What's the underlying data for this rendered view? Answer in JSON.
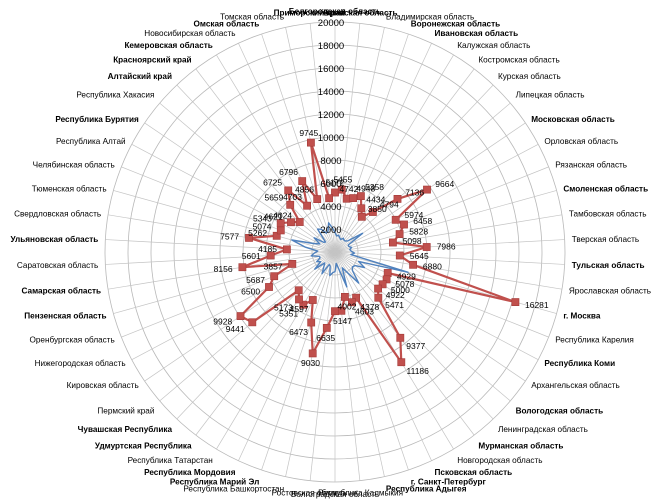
{
  "chart_data": {
    "type": "radar",
    "grid": true,
    "legend": "none",
    "rmax": 20000,
    "ticks": [
      2000,
      4000,
      6000,
      8000,
      10000,
      12000,
      14000,
      16000,
      18000,
      20000
    ],
    "tick_labels_display": [
      "2000",
      "4000",
      "6000",
      "8000",
      "10000",
      "12000",
      "14000",
      "16000",
      "18000",
      "20000"
    ],
    "categories": [
      {
        "label": "Белгородская область",
        "bold": true
      },
      {
        "label": "Брянская область",
        "bold": true
      },
      {
        "label": "Владимирская область",
        "bold": false
      },
      {
        "label": "Воронежская область",
        "bold": true
      },
      {
        "label": "Ивановская область",
        "bold": true
      },
      {
        "label": "Калужская область",
        "bold": false
      },
      {
        "label": "Костромская область",
        "bold": false
      },
      {
        "label": "Курская область",
        "bold": false
      },
      {
        "label": "Липецкая область",
        "bold": false
      },
      {
        "label": "Московская область",
        "bold": true
      },
      {
        "label": "Орловская область",
        "bold": false
      },
      {
        "label": "Рязанская область",
        "bold": false
      },
      {
        "label": "Смоленская область",
        "bold": true
      },
      {
        "label": "Тамбовская область",
        "bold": false
      },
      {
        "label": "Тверская область",
        "bold": false
      },
      {
        "label": "Тульская область",
        "bold": true
      },
      {
        "label": "Ярославская область",
        "bold": false
      },
      {
        "label": "г. Москва",
        "bold": true
      },
      {
        "label": "Республика Карелия",
        "bold": false
      },
      {
        "label": "Республика Коми",
        "bold": true
      },
      {
        "label": "Архангельская область",
        "bold": false
      },
      {
        "label": "Вологодская область",
        "bold": true
      },
      {
        "label": "Ленинградская область",
        "bold": false
      },
      {
        "label": "Мурманская область",
        "bold": true
      },
      {
        "label": "Новгородская область",
        "bold": false
      },
      {
        "label": "Псковская область",
        "bold": true
      },
      {
        "label": "г. Санкт-Петербург",
        "bold": true
      },
      {
        "label": "Республика Адыгея",
        "bold": true
      },
      {
        "label": "Республика Калмыкия",
        "bold": false
      },
      {
        "label": "Волгоградская область",
        "bold": false
      },
      {
        "label": "Ростовская область",
        "bold": false
      },
      {
        "label": "Республика Башкортостан",
        "bold": false
      },
      {
        "label": "Республика Марий Эл",
        "bold": true
      },
      {
        "label": "Республика Мордовия",
        "bold": true
      },
      {
        "label": "Республика Татарстан",
        "bold": false
      },
      {
        "label": "Удмуртская Республика",
        "bold": true
      },
      {
        "label": "Чувашская Республика",
        "bold": true
      },
      {
        "label": "Пермский край",
        "bold": false
      },
      {
        "label": "Кировская область",
        "bold": false
      },
      {
        "label": "Нижегородская область",
        "bold": false
      },
      {
        "label": "Оренбургская область",
        "bold": false
      },
      {
        "label": "Пензенская область",
        "bold": true
      },
      {
        "label": "Самарская область",
        "bold": true
      },
      {
        "label": "Саратовская область",
        "bold": false
      },
      {
        "label": "Ульяновская область",
        "bold": true
      },
      {
        "label": "Свердловская область",
        "bold": false
      },
      {
        "label": "Тюменская область",
        "bold": false
      },
      {
        "label": "Челябинская область",
        "bold": false
      },
      {
        "label": "Республика Алтай",
        "bold": false
      },
      {
        "label": "Республика Бурятия",
        "bold": true
      },
      {
        "label": "Республика Хакасия",
        "bold": false
      },
      {
        "label": "Алтайский край",
        "bold": true
      },
      {
        "label": "Красноярский край",
        "bold": true
      },
      {
        "label": "Кемеровская область",
        "bold": true
      },
      {
        "label": "Новосибирская область",
        "bold": false
      },
      {
        "label": "Омская область",
        "bold": true
      },
      {
        "label": "Томская область",
        "bold": false
      },
      {
        "label": "Приморский край",
        "bold": true
      }
    ],
    "series": [
      {
        "color": "#c0504d",
        "markers": true,
        "values": [
          5172,
          5455,
          4742,
          4948,
          5358,
          4434,
          3850,
          4794,
          7136,
          9664,
          5974,
          6458,
          5828,
          5098,
          7986,
          5645,
          6880,
          16281,
          4929,
          5078,
          5000,
          4922,
          5471,
          9377,
          11186,
          4378,
          4603,
          4002,
          5147,
          5147,
          6635,
          9030,
          6473,
          4597,
          5351,
          5173,
          4591,
          9441,
          9928,
          6500,
          5687,
          3857,
          8156,
          5601,
          4185,
          7577,
          5262,
          5074,
          5343,
          4621,
          4024,
          5659,
          6725,
          4703,
          6796,
          4856,
          9745,
          4710
        ],
        "show_labels": [
          true,
          true,
          true,
          true,
          true,
          true,
          true,
          true,
          true,
          true,
          true,
          true,
          true,
          true,
          true,
          true,
          true,
          true,
          true,
          true,
          true,
          true,
          true,
          true,
          true,
          true,
          true,
          true,
          true,
          false,
          true,
          true,
          true,
          true,
          true,
          true,
          false,
          true,
          true,
          true,
          true,
          true,
          true,
          true,
          true,
          true,
          true,
          true,
          true,
          true,
          true,
          true,
          true,
          true,
          true,
          true,
          true,
          false
        ]
      },
      {
        "color": "#4f81bd",
        "markers": false,
        "values": [
          1700,
          1400,
          1500,
          1300,
          1200,
          1400,
          1300,
          1300,
          1500,
          2900,
          1300,
          1300,
          1500,
          1300,
          1400,
          1700,
          1400,
          6600,
          2200,
          2900,
          2100,
          2000,
          2200,
          3400,
          2100,
          1500,
          3200,
          1500,
          1000,
          1700,
          1800,
          2100,
          1300,
          1200,
          2200,
          1600,
          1300,
          2300,
          1500,
          1800,
          1400,
          1400,
          2100,
          1800,
          1500,
          2600,
          3900,
          2000,
          1500,
          2200,
          1300,
          1200,
          2500,
          2300,
          1800,
          1900,
          2600,
          2100
        ]
      }
    ]
  }
}
